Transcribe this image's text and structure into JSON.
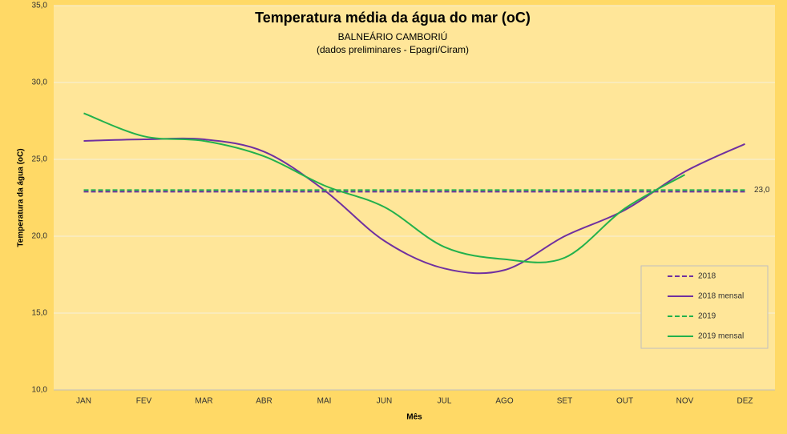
{
  "chart_data": {
    "type": "line",
    "title": "Temperatura média da água do mar (oC)",
    "subtitle": [
      "BALNEÁRIO CAMBORIÚ",
      "(dados preliminares - Epagri/Ciram)"
    ],
    "x_label": "Mês",
    "y_label": "Temperatura da água (oC)",
    "categories": [
      "JAN",
      "FEV",
      "MAR",
      "ABR",
      "MAI",
      "JUN",
      "JUL",
      "AGO",
      "SET",
      "OUT",
      "NOV",
      "DEZ"
    ],
    "series": [
      {
        "name": "2018",
        "color": "#7030a0",
        "dash": true,
        "values": [
          22.9,
          22.9,
          22.9,
          22.9,
          22.9,
          22.9,
          22.9,
          22.9,
          22.9,
          22.9,
          22.9,
          22.9
        ]
      },
      {
        "name": "2018 mensal",
        "color": "#7030a0",
        "dash": false,
        "values": [
          26.2,
          26.3,
          26.3,
          25.5,
          23.0,
          19.7,
          17.9,
          17.8,
          20.0,
          21.7,
          24.2,
          26.0
        ]
      },
      {
        "name": "2019",
        "color": "#22b14c",
        "dash": true,
        "values": [
          23.0,
          23.0,
          23.0,
          23.0,
          23.0,
          23.0,
          23.0,
          23.0,
          23.0,
          23.0,
          23.0,
          23.0
        ]
      },
      {
        "name": "2019 mensal",
        "color": "#22b14c",
        "dash": false,
        "values": [
          28.0,
          26.5,
          26.2,
          25.2,
          23.3,
          21.9,
          19.3,
          18.5,
          18.6,
          21.8,
          24.0,
          null
        ]
      }
    ],
    "annotations": [
      {
        "text": "23,0",
        "y": 23.0
      }
    ],
    "ylim": [
      10,
      35
    ],
    "yticks": [
      {
        "value": 10,
        "label": "10,0"
      },
      {
        "value": 15,
        "label": "15,0"
      },
      {
        "value": 20,
        "label": "20,0"
      },
      {
        "value": 25,
        "label": "25,0"
      },
      {
        "value": 30,
        "label": "30,0"
      },
      {
        "value": 35,
        "label": "35,0"
      }
    ],
    "grid": true,
    "legend": "right"
  }
}
